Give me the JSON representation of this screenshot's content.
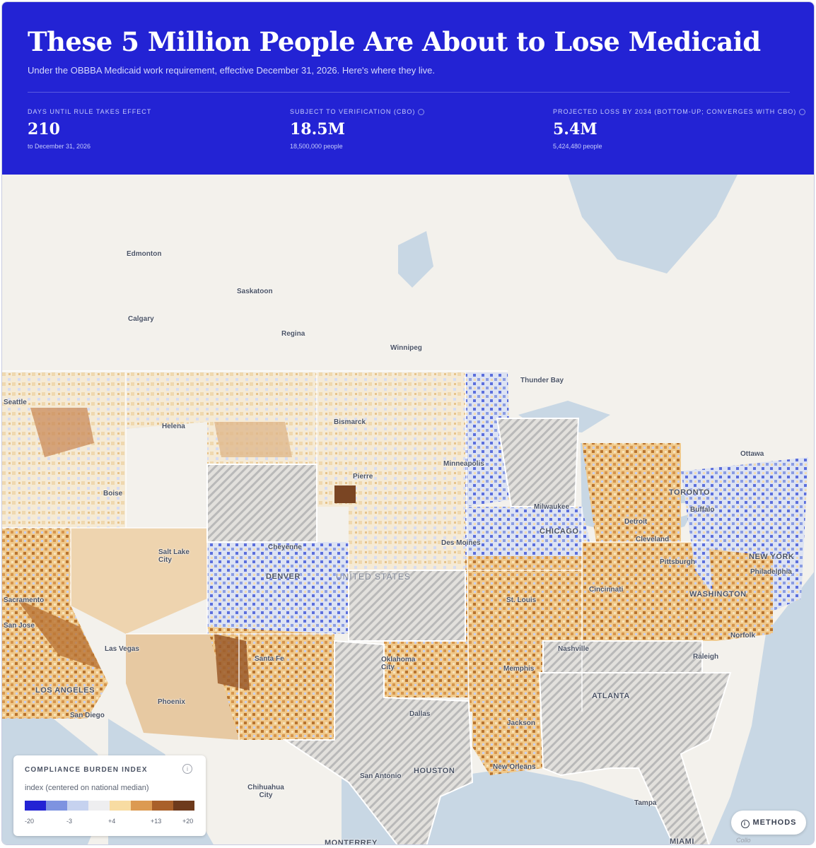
{
  "header": {
    "title": "These 5 Million People Are About to Lose Medicaid",
    "subtitle": "Under the OBBBA Medicaid work requirement, effective December 31, 2026. Here's where they live."
  },
  "stats": [
    {
      "label": "DAYS UNTIL RULE TAKES EFFECT",
      "value": "210",
      "sub": "to December 31, 2026"
    },
    {
      "label": "SUBJECT TO VERIFICATION (CBO)",
      "value": "18.5M",
      "sub": "18,500,000 people"
    },
    {
      "label": "PROJECTED LOSS BY 2034 (BOTTOM-UP; CONVERGES WITH CBO)",
      "value": "5.4M",
      "sub": "5,424,480 people"
    }
  ],
  "map": {
    "country_label": "UNITED STATES",
    "cities": [
      "Edmonton",
      "Saskatoon",
      "Calgary",
      "Regina",
      "Winnipeg",
      "Thunder Bay",
      "Helena",
      "Bismarck",
      "Boise",
      "Minneapolis",
      "Pierre",
      "Milwaukee",
      "Ottawa",
      "TORONTO",
      "Buffalo",
      "Detroit",
      "CHICAGO",
      "Salt Lake City",
      "Cheyenne",
      "Des Moines",
      "Cleveland",
      "NEW YORK",
      "Pittsburgh",
      "Philadelphia",
      "DENVER",
      "WASHINGTON",
      "Cincinnati",
      "St. Louis",
      "Norfolk",
      "Nashville",
      "Las Vegas",
      "Oklahoma City",
      "Raleigh",
      "Memphis",
      "Santa Fe",
      "ATLANTA",
      "LOS ANGELES",
      "Phoenix",
      "San Diego",
      "Dallas",
      "Jackson",
      "New Orleans",
      "HOUSTON",
      "San Antonio",
      "Chihuahua City",
      "Tampa",
      "MONTERREY",
      "MIAMI",
      "Seattle",
      "Sacramento",
      "San Jose"
    ],
    "colors": {
      "water": "#c8d7e4",
      "land": "#f3f1ec",
      "excluded_hatch": "#b9b9b9"
    }
  },
  "legend": {
    "title": "COMPLIANCE BURDEN INDEX",
    "subtitle": "index (centered on national median)",
    "colors": [
      "#2323d4",
      "#7e93e0",
      "#c6d2ef",
      "#eeeef0",
      "#f8dca2",
      "#dc9a52",
      "#a9602a",
      "#6e3a1c"
    ],
    "ticks": [
      "-20",
      "-3",
      "+4",
      "+13",
      "+20"
    ]
  },
  "methods_label": "METHODS",
  "attribution": "Collo"
}
